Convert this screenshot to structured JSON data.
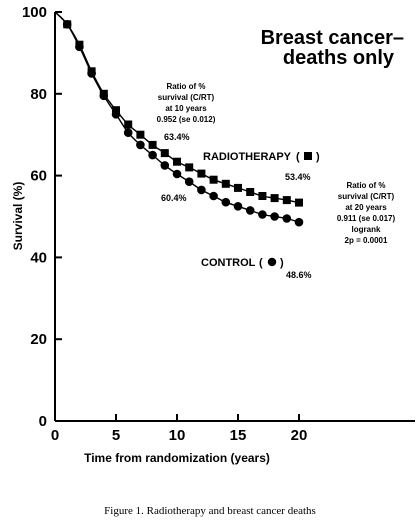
{
  "caption": "Figure 1. Radiotherapy and breast cancer deaths",
  "chart_data": {
    "type": "line",
    "title": [
      "Breast cancer–",
      "deaths only"
    ],
    "xlabel": "Time from randomization (years)",
    "ylabel": "Survival (%)",
    "xlim": [
      0,
      20
    ],
    "ylim": [
      0,
      100
    ],
    "x_ticks": [
      0,
      5,
      10,
      15,
      20
    ],
    "y_ticks": [
      0,
      20,
      40,
      60,
      80,
      100
    ],
    "series": [
      {
        "name": "RADIOTHERAPY",
        "marker": "square",
        "label": "RADIOTHERAPY (■)",
        "x": [
          0,
          1,
          2,
          3,
          4,
          5,
          6,
          7,
          8,
          9,
          10,
          11,
          12,
          13,
          14,
          15,
          16,
          17,
          18,
          19,
          20
        ],
        "y": [
          100,
          97,
          92,
          85.5,
          80,
          76,
          72.5,
          70,
          67.5,
          65.5,
          63.4,
          62,
          60.5,
          59,
          58,
          57,
          56,
          55,
          54.5,
          54,
          53.4
        ]
      },
      {
        "name": "CONTROL",
        "marker": "circle",
        "label": "CONTROL (●)",
        "x": [
          0,
          1,
          2,
          3,
          4,
          5,
          6,
          7,
          8,
          9,
          10,
          11,
          12,
          13,
          14,
          15,
          16,
          17,
          18,
          19,
          20
        ],
        "y": [
          100,
          97,
          91.5,
          85,
          79.5,
          75,
          70.5,
          67.5,
          65,
          62.5,
          60.4,
          58.5,
          56.5,
          55,
          53.5,
          52.5,
          51.5,
          50.5,
          50,
          49.5,
          48.6
        ]
      }
    ],
    "annotations": {
      "ratio10": [
        "Ratio of %",
        "survival (C/RT)",
        "at 10 years",
        "0.952 (se 0.012)"
      ],
      "rt10": "63.4%",
      "ct10": "60.4%",
      "rt20": "53.4%",
      "ct20": "48.6%",
      "ratio20": [
        "Ratio of %",
        "survival (C/RT)",
        "at 20 years",
        "0.911 (se 0.017)",
        "logrank",
        "2p = 0.0001"
      ]
    }
  }
}
